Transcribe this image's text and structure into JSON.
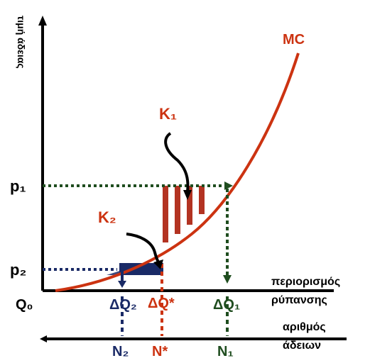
{
  "diagram": {
    "yaxis_label": "τιμή άδειας",
    "curve_label": "MC",
    "price_high": "p₁",
    "price_low": "p₂",
    "area_label_1": "K₁",
    "area_label_2": "K₂",
    "origin_label": "Q₀",
    "delta_q2": "ΔQ₂",
    "delta_q_star": "ΔQ*",
    "delta_q1": "ΔQ₁",
    "xaxis_label_line1": "περιορισμός",
    "xaxis_label_line2": "ρύπανσης",
    "lower_axis_label_line1": "αριθμός",
    "lower_axis_label_line2": "άδειων",
    "n2": "N₂",
    "n_star": "N*",
    "n1": "N₁",
    "colors": {
      "axis": "#000000",
      "curve": "#cc3311",
      "guide": "#1f4d1f",
      "navy": "#1a2a66",
      "hatch": "#b33322"
    }
  }
}
